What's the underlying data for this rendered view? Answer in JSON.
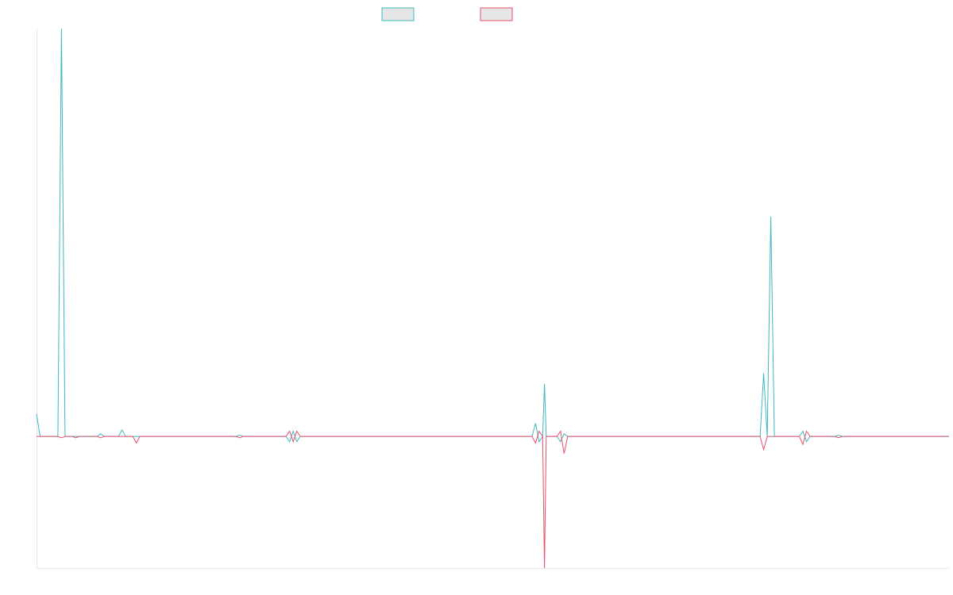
{
  "colors": {
    "series_0": "#3fb8bd",
    "series_1": "#ec4f6e",
    "axis": "#e6e6e6",
    "legend_fill": "#e6e6e6"
  },
  "chart_data": {
    "type": "line",
    "title": "",
    "xlabel": "",
    "ylabel": "",
    "grid": false,
    "legend": "top-center",
    "xlim": [
      0,
      256
    ],
    "ylim": [
      -100,
      310
    ],
    "series": [
      {
        "color": "#3fb8bd",
        "points": [
          [
            0,
            17
          ],
          [
            1,
            0
          ],
          [
            6,
            0
          ],
          [
            7,
            310
          ],
          [
            8,
            0
          ],
          [
            10,
            0
          ],
          [
            17,
            0
          ],
          [
            18,
            2
          ],
          [
            19,
            0
          ],
          [
            23,
            0
          ],
          [
            24,
            5
          ],
          [
            25,
            0
          ],
          [
            56,
            0
          ],
          [
            57,
            1
          ],
          [
            58,
            0
          ],
          [
            70,
            0
          ],
          [
            71,
            -4
          ],
          [
            72,
            4
          ],
          [
            73,
            -4
          ],
          [
            74,
            0
          ],
          [
            139,
            0
          ],
          [
            140,
            10
          ],
          [
            141,
            -4
          ],
          [
            142,
            0
          ],
          [
            142.5,
            40
          ],
          [
            143,
            0
          ],
          [
            146,
            0
          ],
          [
            147,
            -4
          ],
          [
            148,
            2
          ],
          [
            149,
            0
          ],
          [
            203,
            0
          ],
          [
            204,
            48
          ],
          [
            205,
            0
          ],
          [
            206,
            167
          ],
          [
            207,
            0
          ],
          [
            214,
            0
          ],
          [
            215,
            4
          ],
          [
            216,
            -4
          ],
          [
            217,
            0
          ],
          [
            224,
            0
          ],
          [
            225,
            1
          ],
          [
            226,
            0
          ],
          [
            256,
            0
          ]
        ]
      },
      {
        "color": "#ec4f6e",
        "points": [
          [
            0,
            0
          ],
          [
            6,
            0
          ],
          [
            7,
            -1
          ],
          [
            8,
            0
          ],
          [
            10,
            0
          ],
          [
            11,
            -1
          ],
          [
            12,
            0
          ],
          [
            17,
            0
          ],
          [
            18,
            -1
          ],
          [
            19,
            0
          ],
          [
            27,
            0
          ],
          [
            28,
            -5
          ],
          [
            29,
            0
          ],
          [
            56,
            0
          ],
          [
            57,
            -1
          ],
          [
            58,
            0
          ],
          [
            70,
            0
          ],
          [
            71,
            4
          ],
          [
            72,
            -4
          ],
          [
            73,
            4
          ],
          [
            74,
            0
          ],
          [
            139,
            0
          ],
          [
            140,
            -5
          ],
          [
            141,
            4
          ],
          [
            142,
            0
          ],
          [
            142.5,
            -100
          ],
          [
            143,
            0
          ],
          [
            146,
            0
          ],
          [
            147,
            4
          ],
          [
            148,
            -13
          ],
          [
            149,
            0
          ],
          [
            203,
            0
          ],
          [
            204,
            -10
          ],
          [
            205,
            0
          ],
          [
            214,
            0
          ],
          [
            215,
            -6
          ],
          [
            216,
            4
          ],
          [
            217,
            0
          ],
          [
            224,
            0
          ],
          [
            225,
            -1
          ],
          [
            226,
            0
          ],
          [
            256,
            0
          ]
        ]
      }
    ]
  }
}
